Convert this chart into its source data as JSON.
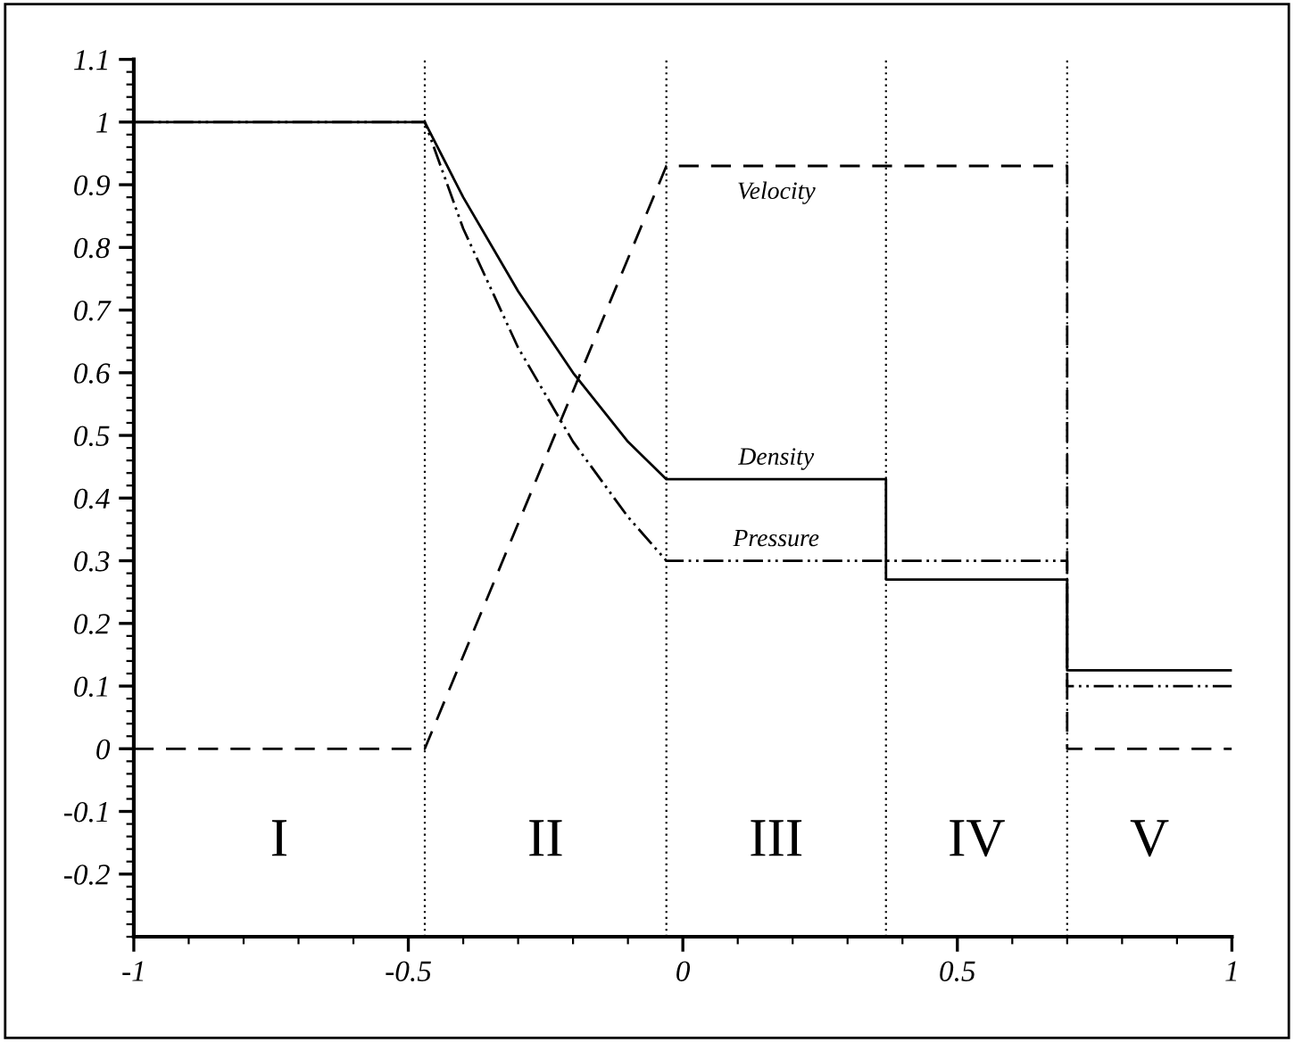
{
  "chart_data": {
    "type": "line",
    "series": [
      {
        "name": "Velocity",
        "color": "#000000",
        "line_style": "dashed",
        "x": [
          -1,
          -0.47,
          -0.03,
          0.7,
          0.7,
          1
        ],
        "values": [
          0,
          0,
          0.93,
          0.93,
          0,
          0
        ]
      },
      {
        "name": "Density",
        "color": "#000000",
        "line_style": "solid",
        "x": [
          -1,
          -0.47,
          -0.4,
          -0.3,
          -0.2,
          -0.1,
          -0.03,
          0.37,
          0.37,
          0.7,
          0.7,
          1
        ],
        "values": [
          1,
          1,
          0.88,
          0.73,
          0.6,
          0.49,
          0.43,
          0.43,
          0.27,
          0.27,
          0.125,
          0.125
        ]
      },
      {
        "name": "Pressure",
        "color": "#000000",
        "line_style": "dashdotdot",
        "x": [
          -1,
          -0.47,
          -0.4,
          -0.3,
          -0.2,
          -0.1,
          -0.03,
          0.7,
          0.7,
          1
        ],
        "values": [
          1,
          1,
          0.83,
          0.64,
          0.49,
          0.37,
          0.3,
          0.3,
          0.1,
          0.1
        ]
      }
    ],
    "xlim": [
      -1,
      1
    ],
    "xticks": [
      -1,
      -0.5,
      0,
      0.5,
      1
    ],
    "ylim": [
      -0.3,
      1.1
    ],
    "yticks": [
      -0.2,
      -0.1,
      0,
      0.1,
      0.2,
      0.3,
      0.4,
      0.5,
      0.6,
      0.7,
      0.8,
      0.9,
      1,
      1.1
    ],
    "ref_lines": [
      {
        "axis": "x",
        "value": -0.47,
        "line_style": "dotted"
      },
      {
        "axis": "x",
        "value": -0.03,
        "line_style": "dotted"
      },
      {
        "axis": "x",
        "value": 0.37,
        "line_style": "dotted"
      },
      {
        "axis": "x",
        "value": 0.7,
        "line_style": "dotted"
      }
    ],
    "annotations": [
      "I",
      "II",
      "III",
      "IV",
      "V"
    ],
    "grid": false,
    "legend": false
  }
}
